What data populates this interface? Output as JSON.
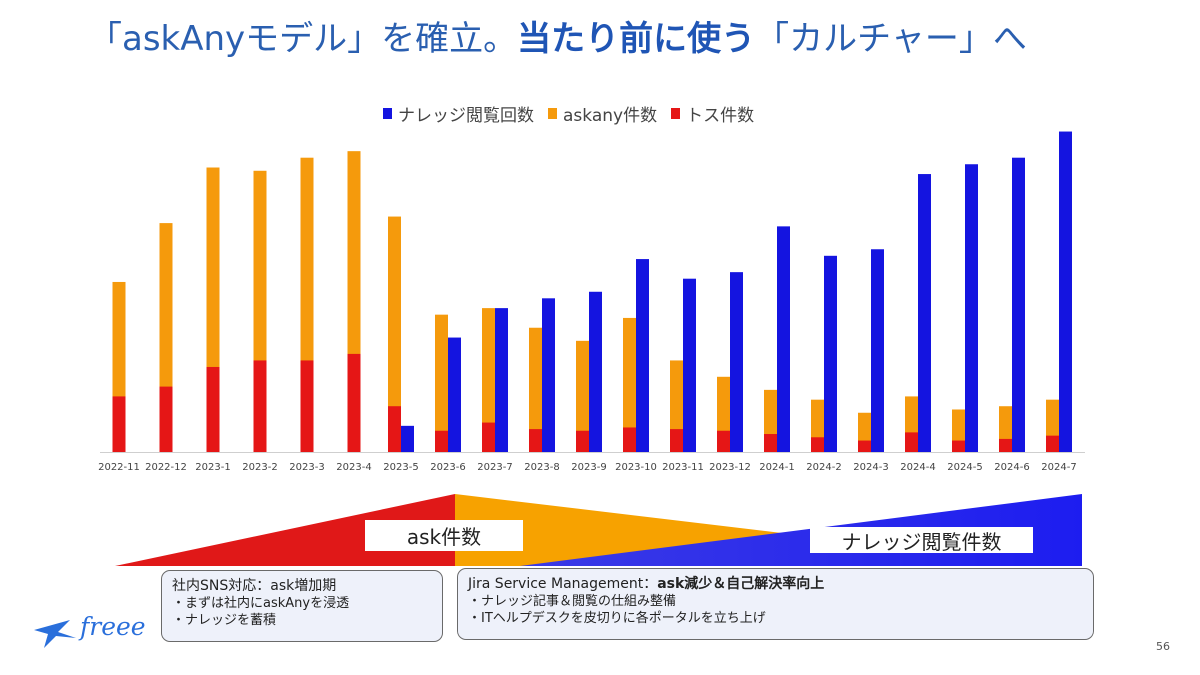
{
  "slide": {
    "title_part1": "「askAnyモデル」を確立。",
    "title_part2": "当たり前に使う",
    "title_part3": "「カルチャー」へ",
    "page_number": "56"
  },
  "chart_data": {
    "type": "bar",
    "categories": [
      "2022-11",
      "2022-12",
      "2023-1",
      "2023-2",
      "2023-3",
      "2023-4",
      "2023-5",
      "2023-6",
      "2023-7",
      "2023-8",
      "2023-9",
      "2023-10",
      "2023-11",
      "2023-12",
      "2024-1",
      "2024-2",
      "2024-3",
      "2024-4",
      "2024-5",
      "2024-6",
      "2024-7"
    ],
    "series": [
      {
        "name": "ナレッジ閲覧回数",
        "color": "#1414e0",
        "values": [
          null,
          null,
          null,
          null,
          null,
          null,
          0.08,
          0.35,
          0.44,
          0.47,
          0.49,
          0.59,
          0.53,
          0.55,
          0.69,
          0.6,
          0.62,
          0.85,
          0.88,
          0.9,
          0.98
        ]
      },
      {
        "name": "askany件数",
        "color": "#f59a0c",
        "values": [
          0.52,
          0.7,
          0.87,
          0.86,
          0.9,
          0.92,
          0.72,
          0.42,
          0.44,
          0.38,
          0.34,
          0.41,
          0.28,
          0.23,
          0.19,
          0.16,
          0.12,
          0.17,
          0.13,
          0.14,
          0.16
        ]
      },
      {
        "name": "トス件数",
        "color": "#e51616",
        "values": [
          0.17,
          0.2,
          0.26,
          0.28,
          0.28,
          0.3,
          0.14,
          0.065,
          0.09,
          0.07,
          0.065,
          0.075,
          0.07,
          0.065,
          0.055,
          0.045,
          0.035,
          0.06,
          0.035,
          0.04,
          0.05
        ]
      }
    ],
    "stacked_pairs": "askany件数 and トス件数 overlap in one bar; ナレッジ閲覧回数 drawn as adjacent bar",
    "ylim": [
      0,
      1
    ]
  },
  "phases": {
    "ask_label": "ask件数",
    "knowledge_label": "ナレッジ閲覧件数",
    "colors": {
      "red": "#e01818",
      "orange": "#f7a200",
      "blue": "#2a2ae8"
    }
  },
  "phase_boxes": {
    "left": {
      "head": "社内SNS対応：ask増加期",
      "items": [
        "・まずは社内にaskAnyを浸透",
        "・ナレッジを蓄積"
      ]
    },
    "right": {
      "head_normal": "Jira Service Management：",
      "head_bold": "ask減少＆自己解決率向上",
      "items": [
        "・ナレッジ記事＆閲覧の仕組み整備",
        "・ITヘルプデスクを皮切りに各ポータルを立ち上げ"
      ]
    }
  },
  "logo": {
    "text": "freee",
    "color": "#2a6fdb"
  }
}
